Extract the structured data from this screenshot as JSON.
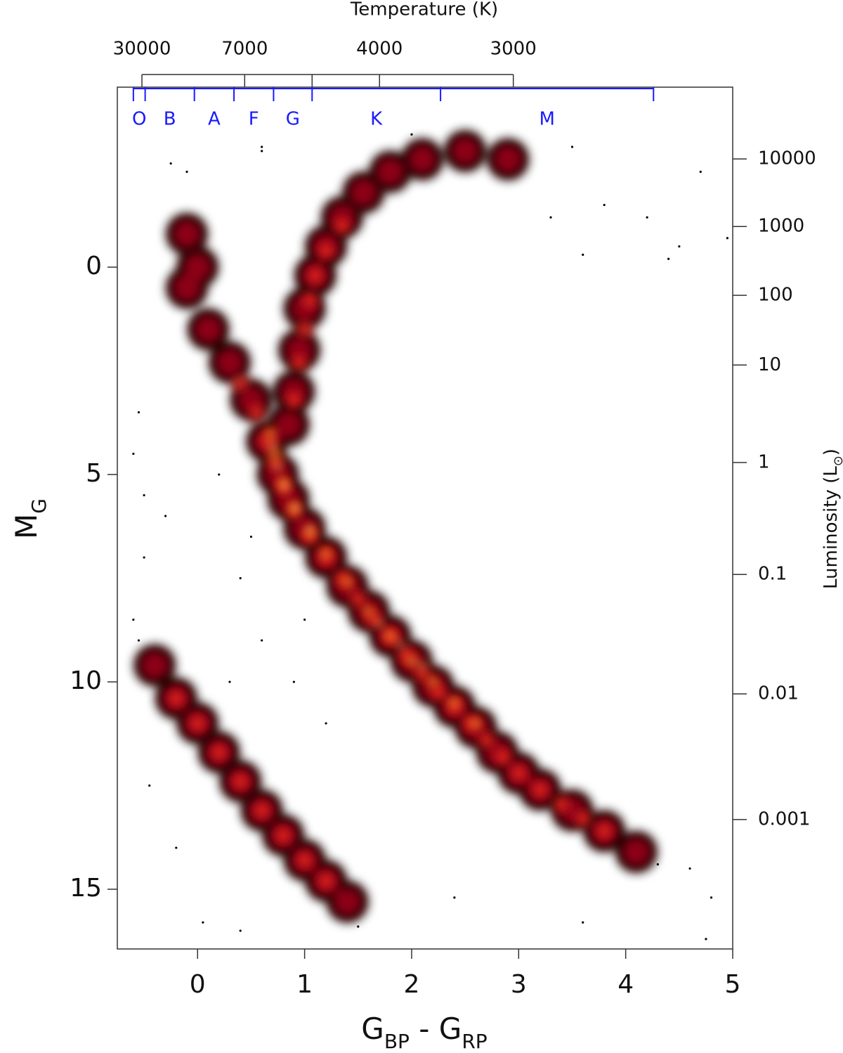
{
  "chart_data": {
    "type": "scatter",
    "xtop_label": "Temperature (K)",
    "xlabel": {
      "main": "G",
      "sub": "BP",
      "main2": " - G",
      "sub2": "RP"
    },
    "ylabel": {
      "main": "M",
      "sub": "G"
    },
    "y2label": {
      "main": "Luminosity (L",
      "sub": "⊙",
      "end": ")"
    },
    "xlim": [
      -0.75,
      5.0
    ],
    "ylim": [
      -4.34,
      16.44
    ],
    "y_inverted": true,
    "xticks": [
      0,
      1,
      2,
      3,
      4,
      5
    ],
    "yticks": [
      0,
      5,
      10,
      15
    ],
    "y2ticks": [
      10000,
      1000,
      100,
      10,
      1,
      0.1,
      0.01,
      0.001
    ],
    "y2tick_mg": [
      -2.61,
      -0.98,
      0.68,
      2.36,
      4.71,
      7.41,
      10.29,
      13.32
    ],
    "xtop_ticks": [
      30000,
      7000,
      null,
      4000,
      3000
    ],
    "xtop_color": [
      -0.52,
      0.44,
      1.07,
      1.7,
      2.95
    ],
    "spectral_classes": [
      "O",
      "B",
      "A",
      "F",
      "G",
      "K",
      "M"
    ],
    "spectral_bounds": [
      -0.6,
      -0.49,
      -0.03,
      0.34,
      0.71,
      1.07,
      2.27,
      4.26
    ],
    "spectral_color": "#1a1aff",
    "series": [
      {
        "color": "#1a0000",
        "r": 30,
        "blur": true,
        "x": [
          -0.1,
          0.1,
          0.3,
          0.5,
          0.65,
          0.75,
          0.85,
          1.0,
          1.2,
          1.4,
          1.6,
          1.8,
          2.0,
          2.2,
          2.4,
          2.6,
          2.8,
          3.0,
          3.2,
          3.5,
          3.8,
          4.1,
          0.85,
          0.9,
          0.95,
          1.0,
          1.1,
          1.2,
          1.35,
          1.55,
          1.8,
          2.1,
          2.5,
          2.9,
          0.0,
          -0.1,
          -0.4,
          -0.2,
          0,
          0.2,
          0.4,
          0.6,
          0.8,
          1.0,
          1.2,
          1.4
        ],
        "values": [
          0.5,
          1.5,
          2.3,
          3.2,
          4.2,
          5.0,
          5.6,
          6.3,
          7.0,
          7.7,
          8.3,
          8.9,
          9.5,
          10.1,
          10.6,
          11.1,
          11.7,
          12.2,
          12.6,
          13.1,
          13.6,
          14.1,
          3.8,
          3.0,
          2.0,
          1.0,
          0.2,
          -0.5,
          -1.2,
          -1.8,
          -2.3,
          -2.6,
          -2.8,
          -2.6,
          0.0,
          -0.8,
          9.6,
          10.4,
          11.0,
          11.7,
          12.4,
          13.1,
          13.7,
          14.3,
          14.8,
          15.3
        ]
      },
      {
        "color": "#8c0014",
        "r": 20,
        "blur": true,
        "x": [
          -0.1,
          0.1,
          0.3,
          0.5,
          0.65,
          0.75,
          0.85,
          1.0,
          1.2,
          1.4,
          1.6,
          1.8,
          2.0,
          2.2,
          2.4,
          2.6,
          2.8,
          3.0,
          3.2,
          3.5,
          3.8,
          4.1,
          0.85,
          0.9,
          0.95,
          1.0,
          1.1,
          1.2,
          1.35,
          1.55,
          1.8,
          2.1,
          2.5,
          2.9,
          0.0,
          -0.1,
          -0.4,
          -0.2,
          0,
          0.2,
          0.4,
          0.6,
          0.8,
          1.0,
          1.2,
          1.4
        ],
        "values": [
          0.5,
          1.5,
          2.3,
          3.2,
          4.2,
          5.0,
          5.6,
          6.3,
          7.0,
          7.7,
          8.3,
          8.9,
          9.5,
          10.1,
          10.6,
          11.1,
          11.7,
          12.2,
          12.6,
          13.1,
          13.6,
          14.1,
          3.8,
          3.0,
          2.0,
          1.0,
          0.2,
          -0.5,
          -1.2,
          -1.8,
          -2.3,
          -2.6,
          -2.8,
          -2.6,
          0.0,
          -0.8,
          9.6,
          10.4,
          11.0,
          11.7,
          12.4,
          13.1,
          13.7,
          14.3,
          14.8,
          15.3
        ]
      },
      {
        "color": "#d8201c",
        "r": 11,
        "blur": true,
        "x": [
          0.4,
          0.55,
          0.65,
          0.72,
          0.8,
          0.9,
          1.05,
          1.2,
          1.35,
          1.5,
          1.65,
          1.8,
          1.95,
          2.1,
          2.25,
          2.4,
          2.55,
          2.7,
          2.85,
          3.0,
          3.2,
          3.4,
          3.6,
          3.8,
          0.9,
          0.95,
          1.0,
          1.05,
          1.1,
          1.2,
          1.35,
          -0.2,
          0,
          0.2,
          0.4,
          0.6,
          0.8,
          1.0,
          1.2
        ],
        "values": [
          2.8,
          3.5,
          4.2,
          4.7,
          5.3,
          5.9,
          6.5,
          7.0,
          7.5,
          8.0,
          8.5,
          8.9,
          9.35,
          9.8,
          10.25,
          10.6,
          11.0,
          11.4,
          11.8,
          12.2,
          12.6,
          12.95,
          13.3,
          13.6,
          3.2,
          2.3,
          1.5,
          0.8,
          0.2,
          -0.4,
          -1.0,
          10.4,
          11.0,
          11.7,
          12.4,
          13.1,
          13.7,
          14.3,
          14.8
        ]
      },
      {
        "color": "#f5821f",
        "r": 7,
        "blur": true,
        "x": [
          0.68,
          0.72,
          0.8,
          0.9,
          1.05,
          1.2,
          1.4,
          1.6,
          1.8,
          2.0,
          2.2,
          2.4,
          2.6
        ],
        "values": [
          4.0,
          4.5,
          5.2,
          5.8,
          6.4,
          6.9,
          7.6,
          8.3,
          8.9,
          9.5,
          10.0,
          10.5,
          11.0
        ]
      },
      {
        "color": "#ffe27a",
        "r": 4,
        "blur": true,
        "x": [
          0.7,
          0.75,
          0.82,
          0.92,
          1.05,
          1.7,
          1.9,
          2.1
        ],
        "values": [
          4.3,
          4.8,
          5.3,
          5.8,
          6.3,
          8.6,
          9.1,
          9.6
        ]
      },
      {
        "color": "#000000",
        "r": 1.6,
        "blur": false,
        "x": [
          -0.6,
          -0.55,
          -0.5,
          -0.6,
          -0.5,
          -0.3,
          0.2,
          0.4,
          0.6,
          0.9,
          1.2,
          0.3,
          1.0,
          0.5,
          -0.1,
          -0.25,
          0.6,
          2.0,
          3.5,
          3.8,
          4.2,
          4.5,
          4.7,
          4.95,
          3.6,
          4.4,
          3.3,
          4.8,
          4.6,
          4.3,
          3.6,
          2.4,
          0.05,
          0.4,
          1.5,
          -0.55,
          -0.45,
          -0.2,
          4.75,
          0.6
        ],
        "values": [
          4.5,
          3.5,
          5.5,
          8.5,
          7,
          6,
          5,
          7.5,
          9,
          10,
          11,
          10,
          8.5,
          6.5,
          -2.3,
          -2.5,
          -2.8,
          -3.2,
          -2.9,
          -1.5,
          -1.2,
          -0.5,
          -2.3,
          -0.7,
          -0.3,
          -0.2,
          -1.2,
          15.2,
          14.5,
          14.4,
          15.8,
          15.2,
          15.8,
          16.0,
          15.9,
          9.0,
          12.5,
          14.0,
          16.2,
          -2.9
        ]
      }
    ]
  }
}
